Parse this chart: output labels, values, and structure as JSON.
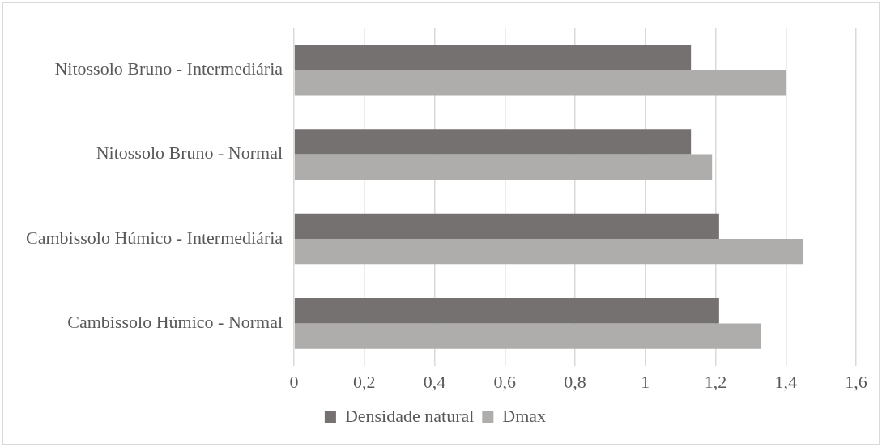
{
  "chart_data": {
    "type": "bar",
    "orientation": "horizontal",
    "categories": [
      "Nitossolo Bruno - Intermediária",
      "Nitossolo Bruno - Normal",
      "Cambissolo Húmico - Intermediária",
      "Cambissolo Húmico - Normal"
    ],
    "series": [
      {
        "name": "Densidade natural",
        "color": "#767171",
        "values": [
          1.13,
          1.13,
          1.21,
          1.21
        ]
      },
      {
        "name": "Dmax",
        "color": "#aeadac",
        "values": [
          1.4,
          1.19,
          1.45,
          1.33
        ]
      }
    ],
    "xlim": [
      0,
      1.6
    ],
    "xticks": [
      {
        "value": 0,
        "label": "0"
      },
      {
        "value": 0.2,
        "label": "0,2"
      },
      {
        "value": 0.4,
        "label": "0,4"
      },
      {
        "value": 0.6,
        "label": "0,6"
      },
      {
        "value": 0.8,
        "label": "0,8"
      },
      {
        "value": 1,
        "label": "1"
      },
      {
        "value": 1.2,
        "label": "1,2"
      },
      {
        "value": 1.4,
        "label": "1,4"
      },
      {
        "value": 1.6,
        "label": "1,6"
      }
    ],
    "grid": "x",
    "legend": "bottom"
  }
}
